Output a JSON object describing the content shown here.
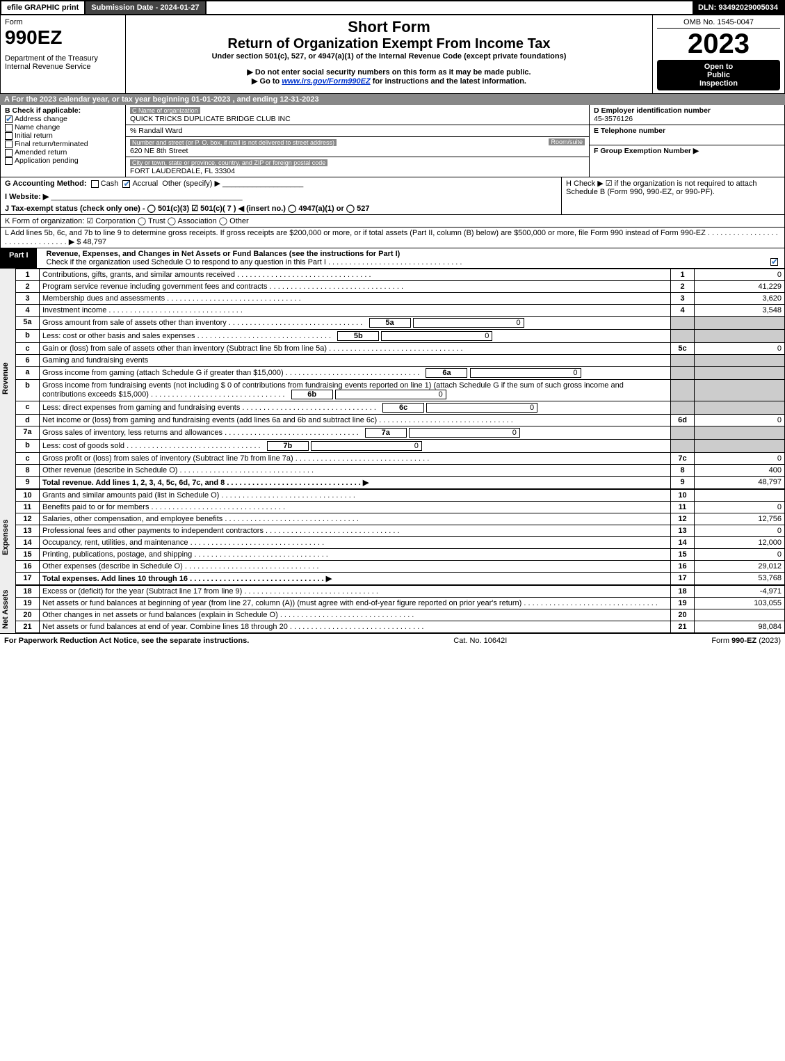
{
  "top": {
    "efile": "efile GRAPHIC print",
    "submission": "Submission Date - 2024-01-27",
    "dln": "DLN: 93492029005034"
  },
  "header": {
    "form_word": "Form",
    "form_no": "990EZ",
    "dept": "Department of the Treasury",
    "irs": "Internal Revenue Service",
    "short_form": "Short Form",
    "title": "Return of Organization Exempt From Income Tax",
    "under": "Under section 501(c), 527, or 4947(a)(1) of the Internal Revenue Code (except private foundations)",
    "ssn_note": "▶ Do not enter social security numbers on this form as it may be made public.",
    "goto": "▶ Go to ",
    "goto_link": "www.irs.gov/Form990EZ",
    "goto_tail": " for instructions and the latest information.",
    "omb": "OMB No. 1545-0047",
    "year": "2023",
    "open1": "Open to",
    "open2": "Public",
    "open3": "Inspection"
  },
  "section_a": "A  For the 2023 calendar year, or tax year beginning 01-01-2023 , and ending 12-31-2023",
  "section_b": {
    "title": "B  Check if applicable:",
    "items": [
      {
        "label": "Address change",
        "checked": true
      },
      {
        "label": "Name change",
        "checked": false
      },
      {
        "label": "Initial return",
        "checked": false
      },
      {
        "label": "Final return/terminated",
        "checked": false
      },
      {
        "label": "Amended return",
        "checked": false
      },
      {
        "label": "Application pending",
        "checked": false
      }
    ]
  },
  "section_c": {
    "name_label": "C Name of organization",
    "name": "QUICK TRICKS DUPLICATE BRIDGE CLUB INC",
    "care_of": "% Randall Ward",
    "addr_label": "Number and street (or P. O. box, if mail is not delivered to street address)",
    "room_label": "Room/suite",
    "addr": "620 NE 8th Street",
    "city_label": "City or town, state or province, country, and ZIP or foreign postal code",
    "city": "FORT LAUDERDALE, FL  33304"
  },
  "section_d": {
    "label": "D Employer identification number",
    "ein": "45-3576126",
    "e_label": "E Telephone number",
    "f_label": "F Group Exemption Number   ▶"
  },
  "section_g": {
    "label": "G Accounting Method:",
    "cash": "Cash",
    "accrual": "Accrual",
    "other": "Other (specify) ▶"
  },
  "section_h": "H  Check ▶  ☑  if the organization is not required to attach Schedule B (Form 990, 990-EZ, or 990-PF).",
  "section_i": "I Website: ▶",
  "section_j": "J Tax-exempt status (check only one) -  ◯ 501(c)(3)  ☑ 501(c)( 7 ) ◀ (insert no.)  ◯ 4947(a)(1) or  ◯ 527",
  "section_k": "K Form of organization:  ☑ Corporation  ◯ Trust  ◯ Association  ◯ Other",
  "section_l": {
    "text": "L Add lines 5b, 6c, and 7b to line 9 to determine gross receipts. If gross receipts are $200,000 or more, or if total assets (Part II, column (B) below) are $500,000 or more, file Form 990 instead of Form 990-EZ",
    "amount": "$ 48,797"
  },
  "part1": {
    "label": "Part I",
    "title": "Revenue, Expenses, and Changes in Net Assets or Fund Balances (see the instructions for Part I)",
    "check_line": "Check if the organization used Schedule O to respond to any question in this Part I"
  },
  "sections": {
    "revenue": "Revenue",
    "expenses": "Expenses",
    "netassets": "Net Assets"
  },
  "lines": [
    {
      "n": "1",
      "desc": "Contributions, gifts, grants, and similar amounts received",
      "ln": "1",
      "amt": "0"
    },
    {
      "n": "2",
      "desc": "Program service revenue including government fees and contracts",
      "ln": "2",
      "amt": "41,229"
    },
    {
      "n": "3",
      "desc": "Membership dues and assessments",
      "ln": "3",
      "amt": "3,620"
    },
    {
      "n": "4",
      "desc": "Investment income",
      "ln": "4",
      "amt": "3,548"
    },
    {
      "n": "5a",
      "desc": "Gross amount from sale of assets other than inventory",
      "box": "5a",
      "boxamt": "0"
    },
    {
      "n": "b",
      "desc": "Less: cost or other basis and sales expenses",
      "box": "5b",
      "boxamt": "0"
    },
    {
      "n": "c",
      "desc": "Gain or (loss) from sale of assets other than inventory (Subtract line 5b from line 5a)",
      "ln": "5c",
      "amt": "0"
    },
    {
      "n": "6",
      "desc": "Gaming and fundraising events"
    },
    {
      "n": "a",
      "desc": "Gross income from gaming (attach Schedule G if greater than $15,000)",
      "box": "6a",
      "boxamt": "0"
    },
    {
      "n": "b",
      "desc": "Gross income from fundraising events (not including $  0                   of contributions from fundraising events reported on line 1) (attach Schedule G if the sum of such gross income and contributions exceeds $15,000)",
      "box": "6b",
      "boxamt": "0"
    },
    {
      "n": "c",
      "desc": "Less: direct expenses from gaming and fundraising events",
      "box": "6c",
      "boxamt": "0"
    },
    {
      "n": "d",
      "desc": "Net income or (loss) from gaming and fundraising events (add lines 6a and 6b and subtract line 6c)",
      "ln": "6d",
      "amt": "0"
    },
    {
      "n": "7a",
      "desc": "Gross sales of inventory, less returns and allowances",
      "box": "7a",
      "boxamt": "0"
    },
    {
      "n": "b",
      "desc": "Less: cost of goods sold",
      "box": "7b",
      "boxamt": "0"
    },
    {
      "n": "c",
      "desc": "Gross profit or (loss) from sales of inventory (Subtract line 7b from line 7a)",
      "ln": "7c",
      "amt": "0"
    },
    {
      "n": "8",
      "desc": "Other revenue (describe in Schedule O)",
      "ln": "8",
      "amt": "400"
    },
    {
      "n": "9",
      "desc": "Total revenue. Add lines 1, 2, 3, 4, 5c, 6d, 7c, and 8",
      "ln": "9",
      "amt": "48,797",
      "bold": true
    }
  ],
  "exp_lines": [
    {
      "n": "10",
      "desc": "Grants and similar amounts paid (list in Schedule O)",
      "ln": "10",
      "amt": ""
    },
    {
      "n": "11",
      "desc": "Benefits paid to or for members",
      "ln": "11",
      "amt": "0"
    },
    {
      "n": "12",
      "desc": "Salaries, other compensation, and employee benefits",
      "ln": "12",
      "amt": "12,756"
    },
    {
      "n": "13",
      "desc": "Professional fees and other payments to independent contractors",
      "ln": "13",
      "amt": "0"
    },
    {
      "n": "14",
      "desc": "Occupancy, rent, utilities, and maintenance",
      "ln": "14",
      "amt": "12,000"
    },
    {
      "n": "15",
      "desc": "Printing, publications, postage, and shipping",
      "ln": "15",
      "amt": "0"
    },
    {
      "n": "16",
      "desc": "Other expenses (describe in Schedule O)",
      "ln": "16",
      "amt": "29,012"
    },
    {
      "n": "17",
      "desc": "Total expenses. Add lines 10 through 16",
      "ln": "17",
      "amt": "53,768",
      "bold": true
    }
  ],
  "na_lines": [
    {
      "n": "18",
      "desc": "Excess or (deficit) for the year (Subtract line 17 from line 9)",
      "ln": "18",
      "amt": "-4,971"
    },
    {
      "n": "19",
      "desc": "Net assets or fund balances at beginning of year (from line 27, column (A)) (must agree with end-of-year figure reported on prior year's return)",
      "ln": "19",
      "amt": "103,055"
    },
    {
      "n": "20",
      "desc": "Other changes in net assets or fund balances (explain in Schedule O)",
      "ln": "20",
      "amt": ""
    },
    {
      "n": "21",
      "desc": "Net assets or fund balances at end of year. Combine lines 18 through 20",
      "ln": "21",
      "amt": "98,084"
    }
  ],
  "footer": {
    "left": "For Paperwork Reduction Act Notice, see the separate instructions.",
    "mid": "Cat. No. 10642I",
    "right": "Form 990-EZ (2023)"
  }
}
